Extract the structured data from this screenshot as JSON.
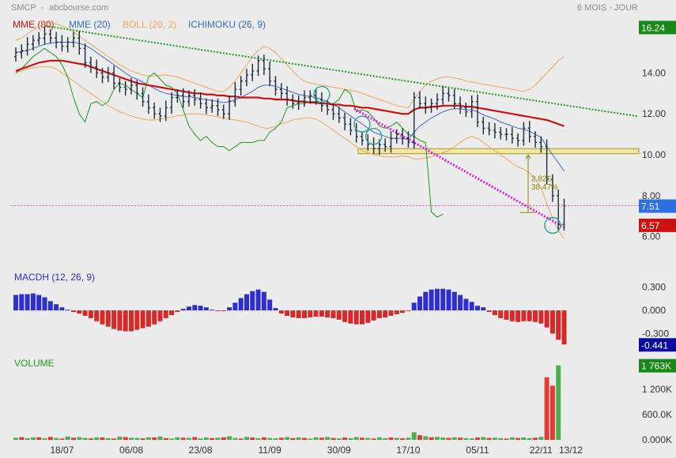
{
  "header": {
    "symbol": "SMCP",
    "site": "abcbourse.com",
    "period": "6 MOIS - JOUR"
  },
  "colors": {
    "background": "#ececec",
    "mme80": "#cc1111",
    "mme20": "#3a6fc4",
    "boll": "#f2a55a",
    "ichimoku": "#1f9a1f",
    "trend_green": "#1f9a1f",
    "trend_magenta": "#e020e0",
    "support_box": "#f5e6a8",
    "macd_pos": "#2f2fcf",
    "macd_neg": "#d42a2a",
    "vol_up": "#4caf50",
    "vol_down": "#e53935",
    "price_bar": "#1a2a40",
    "tag_green": "#178a17",
    "tag_blue": "#2c6fe0",
    "tag_red": "#cc1111",
    "tag_navy": "#0a0aa0",
    "annotation": "#8a8a00"
  },
  "chart_data": [
    {
      "type": "ohlc",
      "panel": "price",
      "legend": [
        "MME (80)",
        "MME (20)",
        "BOLL (20, 2)",
        "ICHIMOKU (26, 9)"
      ],
      "x_labels": [
        "18/07",
        "06/08",
        "23/08",
        "11/09",
        "30/09",
        "17/10",
        "05/11",
        "22/11",
        "13/12"
      ],
      "y_ticks": [
        6.0,
        8.0,
        10.0,
        12.0,
        14.0
      ],
      "ylim": [
        5.6,
        16.6
      ],
      "last_tags": [
        {
          "label": "16.24",
          "value": 16.24,
          "color": "#178a17"
        },
        {
          "label": "7.51",
          "value": 7.51,
          "color": "#2c6fe0"
        },
        {
          "label": "6.57",
          "value": 6.57,
          "color": "#cc1111"
        }
      ],
      "annotation": {
        "text1": "2.82€",
        "text2": "38.47%",
        "from": 10.0,
        "to": 7.18
      },
      "support_zone": [
        10.05,
        10.3
      ],
      "closes": [
        15.0,
        15.1,
        15.4,
        15.6,
        15.7,
        15.9,
        15.7,
        15.5,
        15.3,
        15.5,
        15.7,
        15.2,
        14.5,
        14.3,
        14.0,
        13.8,
        14.0,
        13.5,
        13.3,
        13.2,
        13.4,
        13.0,
        12.6,
        12.3,
        12.0,
        11.9,
        12.3,
        12.8,
        12.9,
        12.6,
        12.9,
        12.7,
        12.5,
        12.3,
        12.4,
        12.2,
        12.0,
        12.6,
        13.2,
        13.6,
        13.9,
        14.1,
        14.6,
        14.2,
        13.6,
        13.2,
        13.0,
        12.7,
        12.5,
        12.6,
        12.8,
        12.9,
        12.7,
        12.4,
        12.2,
        12.0,
        11.8,
        11.5,
        11.2,
        10.9,
        10.7,
        10.5,
        10.3,
        10.5,
        10.4,
        10.8,
        11.0,
        10.8,
        10.6,
        12.8,
        12.5,
        12.3,
        12.5,
        12.7,
        13.0,
        12.9,
        12.5,
        12.3,
        12.1,
        12.6,
        11.6,
        11.3,
        11.2,
        11.1,
        11.0,
        11.0,
        10.8,
        10.7,
        11.3,
        10.9,
        10.6,
        10.4,
        8.8,
        8.0,
        6.6,
        7.5
      ],
      "mme80": [
        14.1,
        14.2,
        14.3,
        14.4,
        14.5,
        14.55,
        14.6,
        14.6,
        14.6,
        14.55,
        14.5,
        14.45,
        14.4,
        14.3,
        14.2,
        14.1,
        14.0,
        13.9,
        13.8,
        13.7,
        13.6,
        13.5,
        13.45,
        13.4,
        13.35,
        13.3,
        13.25,
        13.2,
        13.15,
        13.1,
        13.05,
        13.0,
        13.0,
        12.95,
        12.95,
        12.9,
        12.9,
        12.85,
        12.85,
        12.8,
        12.8,
        12.8,
        12.8,
        12.75,
        12.75,
        12.7,
        12.7,
        12.7,
        12.65,
        12.6,
        12.6,
        12.55,
        12.55,
        12.5,
        12.5,
        12.45,
        12.45,
        12.4,
        12.4,
        12.35,
        12.3,
        12.3,
        12.25,
        12.2,
        12.15,
        12.1,
        12.05,
        12.0,
        12.0,
        12.2,
        12.3,
        12.3,
        12.35,
        12.35,
        12.4,
        12.4,
        12.4,
        12.4,
        12.35,
        12.35,
        12.3,
        12.25,
        12.2,
        12.15,
        12.1,
        12.05,
        12.0,
        11.95,
        11.9,
        11.85,
        11.8,
        11.75,
        11.7,
        11.6,
        11.5,
        11.4
      ],
      "mme20": [
        15.0,
        15.05,
        15.1,
        15.2,
        15.3,
        15.4,
        15.45,
        15.5,
        15.5,
        15.5,
        15.5,
        15.45,
        15.35,
        15.2,
        15.0,
        14.8,
        14.6,
        14.4,
        14.2,
        14.0,
        13.8,
        13.7,
        13.55,
        13.4,
        13.25,
        13.1,
        13.0,
        12.95,
        12.9,
        12.85,
        12.85,
        12.8,
        12.75,
        12.7,
        12.65,
        12.6,
        12.55,
        12.6,
        12.7,
        12.8,
        12.95,
        13.1,
        13.3,
        13.4,
        13.4,
        13.35,
        13.25,
        13.15,
        13.05,
        12.95,
        12.9,
        12.85,
        12.8,
        12.7,
        12.6,
        12.45,
        12.3,
        12.1,
        11.9,
        11.7,
        11.5,
        11.3,
        11.1,
        11.0,
        10.9,
        10.8,
        10.8,
        10.8,
        10.75,
        11.1,
        11.4,
        11.6,
        11.8,
        11.95,
        12.1,
        12.2,
        12.25,
        12.25,
        12.2,
        12.2,
        12.1,
        11.95,
        11.85,
        11.75,
        11.6,
        11.5,
        11.4,
        11.3,
        11.25,
        11.15,
        11.0,
        10.85,
        10.4,
        10.0,
        9.6,
        9.2
      ],
      "boll_upper": [
        15.6,
        15.7,
        15.9,
        16.1,
        16.3,
        16.4,
        16.45,
        16.4,
        16.3,
        16.2,
        16.0,
        15.8,
        15.6,
        15.4,
        15.2,
        15.0,
        14.8,
        14.6,
        14.4,
        14.25,
        14.1,
        14.0,
        13.9,
        13.85,
        13.85,
        13.9,
        13.9,
        13.85,
        13.8,
        13.7,
        13.6,
        13.5,
        13.4,
        13.3,
        13.2,
        13.1,
        13.1,
        13.3,
        13.6,
        14.0,
        14.4,
        14.8,
        15.1,
        15.3,
        15.2,
        15.0,
        14.7,
        14.4,
        14.1,
        13.8,
        13.6,
        13.5,
        13.45,
        13.4,
        13.35,
        13.3,
        13.25,
        13.2,
        13.15,
        13.1,
        13.0,
        12.9,
        12.8,
        12.7,
        12.6,
        12.5,
        12.4,
        12.35,
        12.3,
        12.7,
        13.1,
        13.4,
        13.6,
        13.7,
        13.8,
        13.8,
        13.75,
        13.7,
        13.6,
        13.55,
        13.5,
        13.45,
        13.4,
        13.35,
        13.3,
        13.25,
        13.2,
        13.15,
        13.1,
        13.2,
        13.4,
        13.7,
        14.0,
        14.3,
        14.6,
        14.8
      ],
      "boll_lower": [
        14.0,
        14.1,
        14.2,
        14.25,
        14.3,
        14.3,
        14.3,
        14.2,
        14.0,
        13.8,
        13.6,
        13.4,
        13.2,
        13.0,
        12.8,
        12.6,
        12.4,
        12.25,
        12.1,
        12.0,
        11.9,
        11.8,
        11.75,
        11.7,
        11.7,
        11.75,
        11.8,
        11.85,
        11.9,
        11.95,
        12.0,
        12.0,
        12.0,
        11.95,
        11.9,
        11.85,
        11.8,
        11.75,
        11.7,
        11.65,
        11.6,
        11.5,
        11.4,
        11.3,
        11.3,
        11.4,
        11.5,
        11.6,
        11.7,
        11.75,
        11.8,
        11.8,
        11.75,
        11.6,
        11.4,
        11.2,
        11.0,
        10.8,
        10.6,
        10.4,
        10.2,
        10.1,
        10.0,
        9.95,
        9.9,
        9.9,
        9.9,
        9.95,
        9.9,
        9.8,
        9.8,
        9.85,
        9.9,
        10.0,
        10.1,
        10.2,
        10.4,
        10.6,
        10.8,
        10.9,
        10.8,
        10.6,
        10.4,
        10.2,
        10.0,
        9.8,
        9.6,
        9.4,
        9.3,
        9.1,
        8.8,
        8.4,
        7.6,
        6.9,
        6.3,
        5.9
      ],
      "ichimoku": [
        14.0,
        14.2,
        14.5,
        14.8,
        15.0,
        15.2,
        15.0,
        14.8,
        14.4,
        13.8,
        12.8,
        12.0,
        11.6,
        12.5,
        12.6,
        12.4,
        12.6,
        13.2,
        13.5,
        13.4,
        13.2,
        13.0,
        12.8,
        13.8,
        14.0,
        13.7,
        13.4,
        13.3,
        13.0,
        12.2,
        11.4,
        11.0,
        10.7,
        10.9,
        10.6,
        10.4,
        10.4,
        10.2,
        10.4,
        10.6,
        10.6,
        10.6,
        10.7,
        10.7,
        11.1,
        11.3,
        11.6,
        12.3,
        12.4,
        12.5,
        12.5,
        12.6,
        12.6,
        12.5,
        12.5,
        12.5,
        12.7,
        13.2,
        13.0,
        12.1,
        12.2,
        12.1,
        11.8,
        11.4,
        11.3,
        11.4,
        11.6,
        11.3,
        11.0,
        10.9,
        10.7,
        10.6,
        7.2,
        6.95,
        7.1
      ],
      "trend_green": {
        "from": [
          5,
          16.3
        ],
        "to": [
          95,
          12.0
        ]
      },
      "trend_magenta": {
        "from": [
          49,
          13.8
        ],
        "to": [
          95,
          6.45
        ]
      },
      "circles": [
        [
          53,
          12.95
        ],
        [
          60,
          11.5
        ],
        [
          62,
          10.9
        ],
        [
          93,
          6.55
        ]
      ]
    },
    {
      "type": "bar",
      "panel": "macd",
      "legend": [
        "MACDH (12, 26, 9)"
      ],
      "y_ticks": [
        0.3,
        0.0,
        -0.3
      ],
      "y_tick_labels": [
        "0.300",
        "0.000",
        "-0.300"
      ],
      "ylim": [
        -0.52,
        0.42
      ],
      "last_tag": {
        "label": "-0.441",
        "value": -0.441
      },
      "values": [
        0.2,
        0.21,
        0.21,
        0.22,
        0.2,
        0.17,
        0.12,
        0.08,
        0.04,
        0.01,
        -0.02,
        -0.04,
        -0.07,
        -0.1,
        -0.14,
        -0.18,
        -0.21,
        -0.24,
        -0.26,
        -0.27,
        -0.27,
        -0.25,
        -0.23,
        -0.21,
        -0.18,
        -0.14,
        -0.1,
        -0.06,
        -0.02,
        0.02,
        0.05,
        0.07,
        0.06,
        0.04,
        0.01,
        -0.01,
        -0.01,
        0.04,
        0.1,
        0.16,
        0.21,
        0.25,
        0.27,
        0.24,
        0.14,
        0.03,
        -0.04,
        -0.07,
        -0.09,
        -0.1,
        -0.1,
        -0.09,
        -0.08,
        -0.08,
        -0.09,
        -0.1,
        -0.12,
        -0.15,
        -0.17,
        -0.18,
        -0.18,
        -0.16,
        -0.13,
        -0.1,
        -0.09,
        -0.07,
        -0.05,
        -0.03,
        -0.01,
        0.1,
        0.18,
        0.24,
        0.27,
        0.28,
        0.28,
        0.27,
        0.24,
        0.2,
        0.15,
        0.11,
        0.06,
        0.04,
        -0.02,
        -0.06,
        -0.1,
        -0.12,
        -0.14,
        -0.15,
        -0.14,
        -0.14,
        -0.15,
        -0.17,
        -0.22,
        -0.3,
        -0.38,
        -0.44
      ]
    },
    {
      "type": "bar",
      "panel": "volume",
      "legend": [
        "VOLUME"
      ],
      "y_ticks": [
        0,
        600000,
        1200000
      ],
      "y_tick_labels": [
        "0.000K",
        "600.0K",
        "1 200K"
      ],
      "ylim": [
        0,
        1850000
      ],
      "last_tag": {
        "label": "1 763K",
        "value": 1763000
      },
      "values": [
        50000,
        65000,
        40000,
        55000,
        60000,
        35000,
        70000,
        45000,
        30000,
        80000,
        50000,
        65000,
        45000,
        35000,
        60000,
        55000,
        40000,
        30000,
        75000,
        65000,
        50000,
        45000,
        35000,
        60000,
        55000,
        80000,
        40000,
        30000,
        60000,
        50000,
        45000,
        65000,
        35000,
        55000,
        40000,
        50000,
        60000,
        85000,
        45000,
        30000,
        70000,
        55000,
        40000,
        60000,
        45000,
        35000,
        50000,
        65000,
        40000,
        55000,
        45000,
        30000,
        60000,
        50000,
        70000,
        45000,
        35000,
        55000,
        40000,
        65000,
        50000,
        45000,
        30000,
        60000,
        40000,
        55000,
        45000,
        35000,
        50000,
        180000,
        110000,
        85000,
        60000,
        70000,
        55000,
        45000,
        60000,
        50000,
        40000,
        35000,
        55000,
        65000,
        45000,
        50000,
        40000,
        30000,
        60000,
        45000,
        55000,
        40000,
        50000,
        70000,
        1480000,
        1280000,
        1763000
      ],
      "down_flags": [
        0,
        1,
        0,
        0,
        1,
        0,
        1,
        0,
        1,
        0,
        1,
        0,
        0,
        1,
        0,
        1,
        0,
        1,
        0,
        1,
        0,
        0,
        1,
        0,
        1,
        0,
        1,
        0,
        0,
        1,
        0,
        1,
        0,
        0,
        1,
        0,
        1,
        0,
        0,
        1,
        0,
        1,
        0,
        1,
        0,
        0,
        1,
        0,
        1,
        0,
        1,
        0,
        0,
        1,
        0,
        1,
        0,
        1,
        0,
        0,
        1,
        0,
        1,
        0,
        0,
        1,
        0,
        1,
        0,
        0,
        1,
        0,
        1,
        0,
        0,
        1,
        0,
        1,
        0,
        0,
        1,
        0,
        1,
        0,
        0,
        1,
        0,
        1,
        0,
        0,
        1,
        0,
        1,
        1,
        0
      ]
    }
  ]
}
